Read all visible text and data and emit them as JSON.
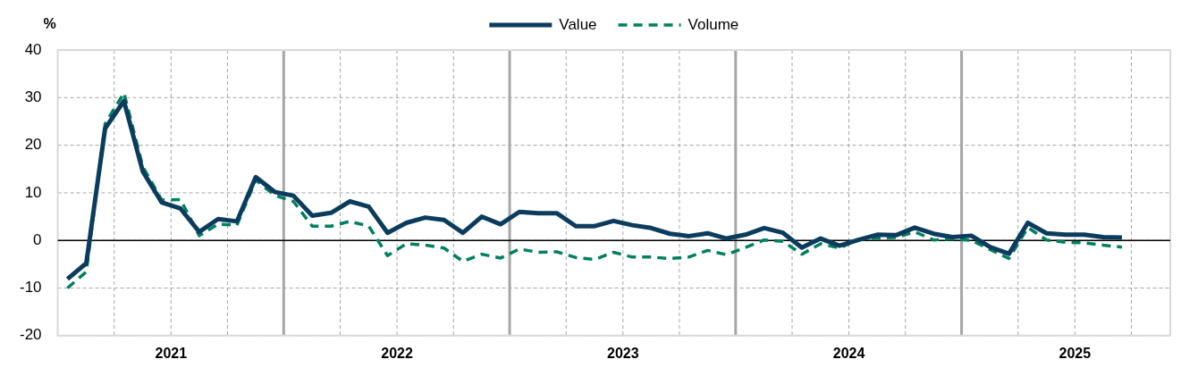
{
  "chart_data": {
    "type": "line",
    "ylabel": "%",
    "legend": "top",
    "grid": true,
    "x": [
      "2021-01",
      "2021-02",
      "2021-03",
      "2021-04",
      "2021-05",
      "2021-06",
      "2021-07",
      "2021-08",
      "2021-09",
      "2021-10",
      "2021-11",
      "2021-12",
      "2022-01",
      "2022-02",
      "2022-03",
      "2022-04",
      "2022-05",
      "2022-06",
      "2022-07",
      "2022-08",
      "2022-09",
      "2022-10",
      "2022-11",
      "2022-12",
      "2023-01",
      "2023-02",
      "2023-03",
      "2023-04",
      "2023-05",
      "2023-06",
      "2023-07",
      "2023-08",
      "2023-09",
      "2023-10",
      "2023-11",
      "2023-12",
      "2024-01",
      "2024-02",
      "2024-03",
      "2024-04",
      "2024-05",
      "2024-06",
      "2024-07",
      "2024-08",
      "2024-09",
      "2024-10",
      "2024-11",
      "2024-12",
      "2025-01",
      "2025-02",
      "2025-03",
      "2025-04",
      "2025-05",
      "2025-06",
      "2025-07",
      "2025-08",
      "2025-09"
    ],
    "series": [
      {
        "name": "Value",
        "color": "#0b3c5d",
        "line_style": "solid",
        "values": [
          -8.1,
          -4.8,
          23.5,
          29.3,
          14.5,
          8.0,
          6.7,
          1.8,
          4.5,
          4.0,
          13.3,
          10.2,
          9.4,
          5.2,
          5.8,
          8.2,
          7.1,
          1.6,
          3.7,
          4.8,
          4.3,
          1.6,
          5.0,
          3.4,
          6.0,
          5.7,
          5.7,
          3.0,
          3.0,
          4.1,
          3.2,
          2.6,
          1.4,
          0.9,
          1.5,
          0.4,
          1.2,
          2.6,
          1.6,
          -1.5,
          0.4,
          -1.1,
          0.1,
          1.2,
          1.1,
          2.7,
          1.4,
          0.7,
          1.0,
          -1.4,
          -2.8,
          3.7,
          1.5,
          1.2,
          1.2,
          0.7,
          0.6
        ]
      },
      {
        "name": "Volume",
        "color": "#00805f",
        "line_style": "dashed",
        "values": [
          -10,
          -6.6,
          24.5,
          31,
          15.5,
          8.5,
          8.6,
          1.0,
          3.4,
          3.2,
          12.7,
          9.5,
          8.2,
          3.0,
          3.0,
          4.0,
          3.0,
          -3.2,
          -0.7,
          -1.0,
          -1.6,
          -4.4,
          -2.9,
          -3.7,
          -1.8,
          -2.5,
          -2.4,
          -3.6,
          -4.0,
          -2.5,
          -3.5,
          -3.5,
          -3.8,
          -3.5,
          -2.1,
          -3.0,
          -1.5,
          0.1,
          -0.2,
          -2.9,
          -0.7,
          -1.6,
          0.2,
          0.5,
          0.6,
          1.8,
          0.1,
          0.3,
          0.0,
          -1.9,
          -3.8,
          2.7,
          0.1,
          -0.4,
          -0.5,
          -1.0,
          -1.4
        ]
      }
    ],
    "xlim": [
      "2020-12-16",
      "2025-11-18"
    ],
    "xticks": [
      {
        "value": "2021-03-16",
        "label": null
      },
      {
        "value": "2021-06-16",
        "label": "2021"
      },
      {
        "value": "2021-09-16",
        "label": null
      },
      {
        "value": "2021-12-16",
        "label": null
      },
      {
        "value": "2022-03-16",
        "label": null
      },
      {
        "value": "2022-06-16",
        "label": "2022"
      },
      {
        "value": "2022-09-16",
        "label": null
      },
      {
        "value": "2022-12-16",
        "label": null
      },
      {
        "value": "2023-03-16",
        "label": null
      },
      {
        "value": "2023-06-16",
        "label": "2023"
      },
      {
        "value": "2023-09-16",
        "label": null
      },
      {
        "value": "2023-12-16",
        "label": null
      },
      {
        "value": "2024-03-16",
        "label": null
      },
      {
        "value": "2024-06-16",
        "label": "2024"
      },
      {
        "value": "2024-09-16",
        "label": null
      },
      {
        "value": "2024-12-16",
        "label": null
      },
      {
        "value": "2025-03-16",
        "label": null
      },
      {
        "value": "2025-06-16",
        "label": "2025"
      },
      {
        "value": "2025-09-16",
        "label": null
      }
    ],
    "ylim": [
      -20,
      40
    ],
    "yticks": [
      -20,
      -10,
      0,
      10,
      20,
      30,
      40
    ],
    "ref_lines": [
      {
        "axis": "y",
        "value": 0,
        "color": "#000000"
      }
    ]
  }
}
